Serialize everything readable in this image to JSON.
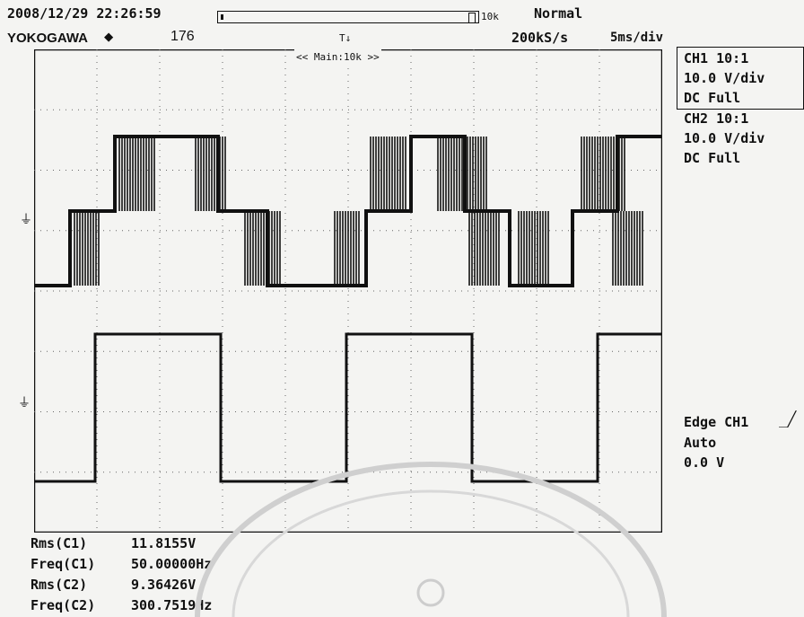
{
  "header": {
    "datetime": "2008/12/29 22:26:59",
    "brand": "YOKOGAWA",
    "brand_mark": "◆",
    "record_count": "176",
    "zoom_label": "10k",
    "trigger_mode": "Normal",
    "sample_rate": "200kS/s",
    "timebase": "5ms/div",
    "trigger_position_marker": "T"
  },
  "screen": {
    "main_label": "<< Main:10k >>",
    "ch1_ground_marker": "1",
    "ch2_ground_marker": "1",
    "trace_color": "#111111",
    "grid_color": "#666666",
    "background_color": "#f4f4f2"
  },
  "channels": [
    {
      "title": "CH1 10:1",
      "vdiv": "10.0 V/div",
      "coupling": "DC   Full"
    },
    {
      "title": "CH2 10:1",
      "vdiv": "10.0 V/div",
      "coupling": "DC   Full"
    }
  ],
  "trigger": {
    "source": "Edge CH1",
    "edge_icon": "rising-edge-icon",
    "mode": "Auto",
    "level": "0.0 V"
  },
  "measurements": [
    {
      "label": "Rms(C1)",
      "value": "11.8155V"
    },
    {
      "label": "Freq(C1)",
      "value": "50.00000Hz"
    },
    {
      "label": "Rms(C2)",
      "value": "9.36426V"
    },
    {
      "label": "Freq(C2)",
      "value": "300.7519Hz"
    }
  ]
}
